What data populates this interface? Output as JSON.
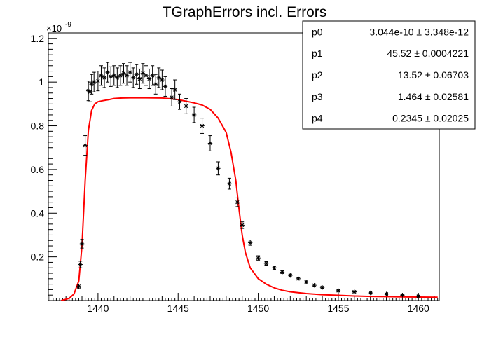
{
  "chart_data": {
    "type": "scatter",
    "title": "TGraphErrors incl. Errors",
    "xlabel": "",
    "ylabel": "",
    "y_exponent": "×10",
    "y_exponent_power": "-9",
    "xlim": [
      1436.9,
      1461.3
    ],
    "ylim": [
      0.0,
      1.225
    ],
    "x_ticks": [
      1440,
      1445,
      1450,
      1455,
      1460
    ],
    "y_ticks": [
      0.2,
      0.4,
      0.6,
      0.8,
      1,
      1.2
    ],
    "x_tick_labels": [
      "1440",
      "1445",
      "1450",
      "1455",
      "1460"
    ],
    "y_tick_labels": [
      "0.2",
      "0.4",
      "0.6",
      "0.8",
      "1",
      "1.2"
    ],
    "grid": false,
    "legend_position": "top-right",
    "series": [
      {
        "kind": "data-with-errors",
        "color": "#000000",
        "x": [
          1438.8,
          1438.9,
          1439.0,
          1439.2,
          1439.4,
          1439.5,
          1439.6,
          1439.75,
          1440.0,
          1440.2,
          1440.4,
          1440.6,
          1440.8,
          1441.0,
          1441.2,
          1441.4,
          1441.6,
          1441.8,
          1442.0,
          1442.2,
          1442.4,
          1442.6,
          1442.8,
          1443.0,
          1443.2,
          1443.4,
          1443.6,
          1443.8,
          1444.0,
          1444.2,
          1444.6,
          1444.8,
          1445.1,
          1445.5,
          1446.0,
          1446.5,
          1447.0,
          1447.5,
          1448.2,
          1448.7,
          1449.0,
          1449.5,
          1450.0,
          1450.5,
          1451.0,
          1451.5,
          1452.0,
          1452.5,
          1453.0,
          1453.5,
          1454.0,
          1455.0,
          1456.0,
          1457.0,
          1458.0,
          1459.0,
          1460.0
        ],
        "y": [
          0.065,
          0.165,
          0.26,
          0.71,
          0.96,
          0.955,
          0.99,
          1.0,
          1.005,
          1.03,
          1.02,
          1.045,
          1.025,
          1.03,
          1.02,
          1.03,
          1.04,
          1.03,
          1.045,
          1.02,
          1.035,
          1.015,
          1.04,
          1.03,
          1.015,
          1.03,
          0.99,
          1.02,
          1.01,
          0.98,
          0.93,
          0.965,
          0.91,
          0.89,
          0.85,
          0.8,
          0.72,
          0.605,
          0.535,
          0.45,
          0.345,
          0.265,
          0.195,
          0.17,
          0.15,
          0.13,
          0.115,
          0.1,
          0.085,
          0.07,
          0.06,
          0.045,
          0.04,
          0.035,
          0.03,
          0.025,
          0.02
        ],
        "err": [
          0.01,
          0.015,
          0.02,
          0.045,
          0.045,
          0.045,
          0.045,
          0.045,
          0.045,
          0.045,
          0.045,
          0.045,
          0.045,
          0.045,
          0.045,
          0.045,
          0.045,
          0.045,
          0.045,
          0.045,
          0.045,
          0.045,
          0.045,
          0.045,
          0.045,
          0.045,
          0.045,
          0.045,
          0.045,
          0.045,
          0.04,
          0.045,
          0.035,
          0.035,
          0.035,
          0.035,
          0.035,
          0.03,
          0.025,
          0.02,
          0.015,
          0.012,
          0.01,
          0.008,
          0.007,
          0.006,
          0.006,
          0.005,
          0.005,
          0.005,
          0.004,
          0.004,
          0.004,
          0.003,
          0.003,
          0.003,
          0.003
        ]
      },
      {
        "kind": "fit-curve",
        "color": "#ff0000",
        "x": [
          1437.7,
          1438.2,
          1438.5,
          1438.8,
          1439.0,
          1439.2,
          1439.4,
          1439.6,
          1439.8,
          1440.0,
          1440.3,
          1440.7,
          1441.0,
          1441.5,
          1442.0,
          1442.5,
          1443.0,
          1444.0,
          1445.0,
          1446.0,
          1446.5,
          1447.0,
          1447.5,
          1448.0,
          1448.3,
          1448.6,
          1448.8,
          1449.0,
          1449.2,
          1449.5,
          1450.0,
          1450.5,
          1451.0,
          1451.5,
          1452.0,
          1453.0,
          1454.0,
          1455.0,
          1456.0,
          1457.0,
          1458.0,
          1459.0,
          1460.0,
          1461.2
        ],
        "y": [
          0.0,
          0.01,
          0.03,
          0.09,
          0.25,
          0.55,
          0.78,
          0.87,
          0.9,
          0.91,
          0.915,
          0.92,
          0.925,
          0.927,
          0.928,
          0.928,
          0.928,
          0.927,
          0.92,
          0.905,
          0.895,
          0.875,
          0.835,
          0.77,
          0.68,
          0.55,
          0.42,
          0.3,
          0.22,
          0.15,
          0.1,
          0.075,
          0.058,
          0.047,
          0.04,
          0.032,
          0.027,
          0.024,
          0.021,
          0.019,
          0.018,
          0.017,
          0.016,
          0.015
        ]
      }
    ],
    "stats_box": [
      {
        "name": "p0",
        "value": "3.044e-10 ± 3.348e-12"
      },
      {
        "name": "p1",
        "value": "45.52 ± 0.0004221"
      },
      {
        "name": "p2",
        "value": "13.52 ± 0.06703"
      },
      {
        "name": "p3",
        "value": "1.464 ± 0.02581"
      },
      {
        "name": "p4",
        "value": "0.2345 ± 0.02025"
      }
    ]
  }
}
